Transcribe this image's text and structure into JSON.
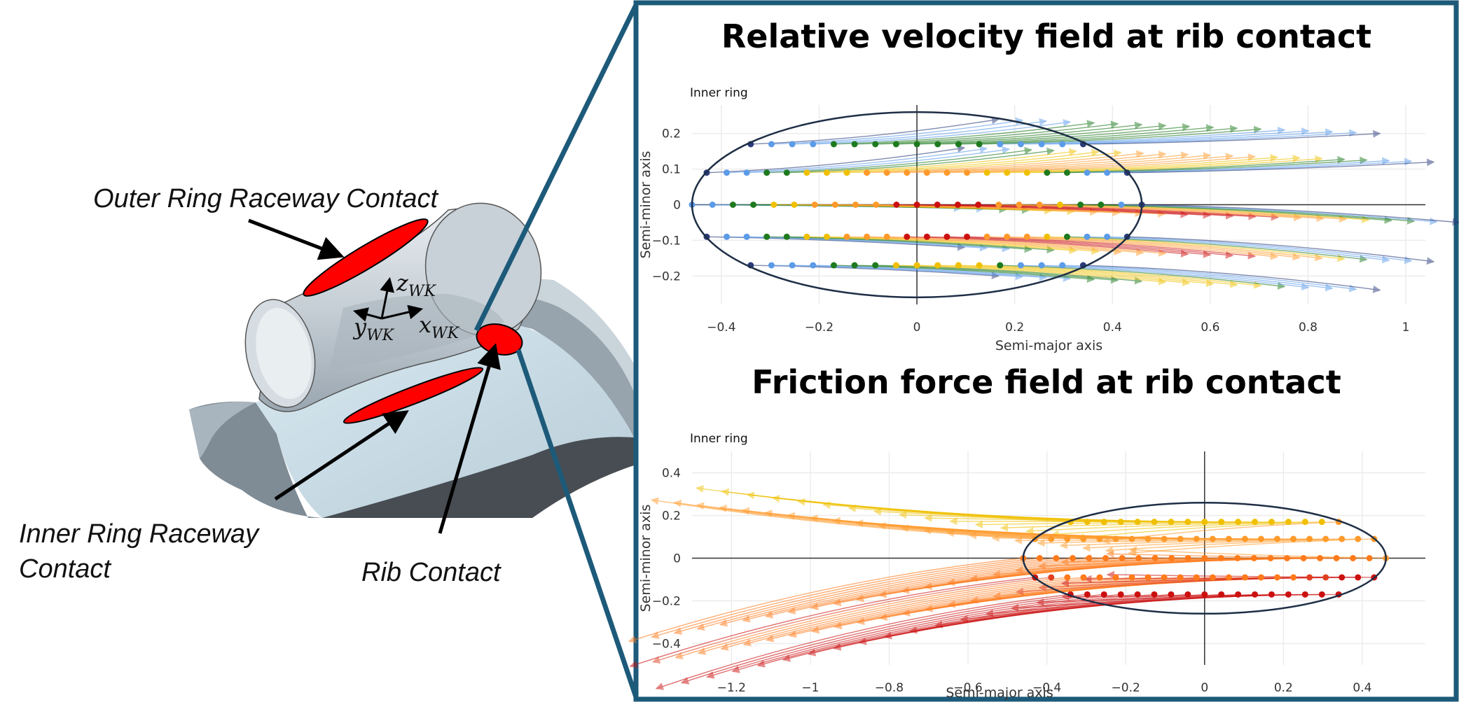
{
  "left_diagram": {
    "labels": {
      "outer_ring_raceway": "Outer Ring Raceway Contact",
      "inner_ring_raceway_line1": "Inner Ring Raceway",
      "inner_ring_raceway_line2": "Contact",
      "rib_contact": "Rib Contact"
    },
    "axes": {
      "z": "z",
      "z_sub": "WK",
      "y": "y",
      "y_sub": "WK",
      "x": "x",
      "x_sub": "WK"
    },
    "colors": {
      "contact_ellipse": "#ff0000",
      "frame": "#1d5a7a"
    }
  },
  "chart_data": [
    {
      "type": "scatter",
      "title": "Relative velocity field at rib contact",
      "annotation": "Inner ring",
      "xlabel": "Semi-major axis",
      "ylabel": "Semi-minor axis",
      "xlim": [
        -0.46,
        1.04
      ],
      "ylim": [
        -0.28,
        0.28
      ],
      "xticks": [
        "−0.4",
        "−0.2",
        "0",
        "0.2",
        "0.4",
        "0.6",
        "0.8",
        "1"
      ],
      "yticks": [
        "0.2",
        "0.1",
        "0",
        "−0.1",
        "−0.2"
      ],
      "xtick_values": [
        -0.4,
        -0.2,
        0,
        0.2,
        0.4,
        0.6,
        0.8,
        1
      ],
      "ytick_values": [
        0.2,
        0.1,
        0,
        -0.1,
        -0.2
      ],
      "contact_ellipse": {
        "a": 0.46,
        "b": 0.26
      },
      "grid": true,
      "rows": [
        {
          "y": 0.17,
          "x_start": -0.34,
          "x_end": 0.34,
          "n": 17,
          "colors": [
            "#2a3b7a",
            "#5b9be8",
            "#5b9be8",
            "#5b9be8",
            "#1e7a1e",
            "#1e7a1e",
            "#1e7a1e",
            "#1e7a1e",
            "#1e7a1e",
            "#1e7a1e",
            "#1e7a1e",
            "#1e7a1e",
            "#5b9be8",
            "#5b9be8",
            "#5b9be8",
            "#5b9be8",
            "#2a3b7a"
          ]
        },
        {
          "y": 0.09,
          "x_start": -0.43,
          "x_end": 0.43,
          "n": 22,
          "colors": [
            "#2a3b7a",
            "#5b9be8",
            "#5b9be8",
            "#1e7a1e",
            "#1e7a1e",
            "#f0c000",
            "#f0c000",
            "#f0c000",
            "#ff9a2a",
            "#ff9a2a",
            "#ff9a2a",
            "#ff9a2a",
            "#ff9a2a",
            "#ff9a2a",
            "#f0c000",
            "#f0c000",
            "#f0c000",
            "#1e7a1e",
            "#1e7a1e",
            "#5b9be8",
            "#5b9be8",
            "#2a3b7a"
          ]
        },
        {
          "y": 0.0,
          "x_start": -0.46,
          "x_end": 0.46,
          "n": 23,
          "colors": [
            "#5b9be8",
            "#5b9be8",
            "#1e7a1e",
            "#1e7a1e",
            "#f0c000",
            "#f0c000",
            "#ff9a2a",
            "#ff9a2a",
            "#ff9a2a",
            "#ff9a2a",
            "#cc1010",
            "#cc1010",
            "#cc1010",
            "#cc1010",
            "#cc1010",
            "#ff9a2a",
            "#ff9a2a",
            "#ff9a2a",
            "#f0c000",
            "#1e7a1e",
            "#1e7a1e",
            "#5b9be8",
            "#2a3b7a"
          ]
        },
        {
          "y": -0.09,
          "x_start": -0.43,
          "x_end": 0.43,
          "n": 22,
          "colors": [
            "#2a3b7a",
            "#5b9be8",
            "#5b9be8",
            "#1e7a1e",
            "#1e7a1e",
            "#f0c000",
            "#f0c000",
            "#ff9a2a",
            "#ff9a2a",
            "#ff9a2a",
            "#cc1010",
            "#cc1010",
            "#cc1010",
            "#cc1010",
            "#ff9a2a",
            "#ff9a2a",
            "#ff9a2a",
            "#f0c000",
            "#1e7a1e",
            "#5b9be8",
            "#5b9be8",
            "#2a3b7a"
          ]
        },
        {
          "y": -0.17,
          "x_start": -0.34,
          "x_end": 0.34,
          "n": 17,
          "colors": [
            "#2a3b7a",
            "#5b9be8",
            "#5b9be8",
            "#5b9be8",
            "#1e7a1e",
            "#1e7a1e",
            "#1e7a1e",
            "#f0c000",
            "#f0c000",
            "#f0c000",
            "#f0c000",
            "#f0c000",
            "#1e7a1e",
            "#5b9be8",
            "#5b9be8",
            "#5b9be8",
            "#2a3b7a"
          ]
        }
      ]
    },
    {
      "type": "scatter",
      "title": "Friction force field at rib contact",
      "annotation": "Inner ring",
      "xlabel": "Semi-major axis",
      "ylabel": "Semi-minor axis",
      "xlim": [
        -1.3,
        0.56
      ],
      "ylim": [
        -0.5,
        0.5
      ],
      "xticks": [
        "−1.2",
        "−1",
        "−0.8",
        "−0.6",
        "−0.4",
        "−0.2",
        "0",
        "0.2",
        "0.4"
      ],
      "yticks": [
        "0.4",
        "0.2",
        "0",
        "−0.2",
        "−0.4"
      ],
      "xtick_values": [
        -1.2,
        -1,
        -0.8,
        -0.6,
        -0.4,
        -0.2,
        0,
        0.2,
        0.4
      ],
      "ytick_values": [
        0.4,
        0.2,
        0,
        -0.2,
        -0.4
      ],
      "contact_ellipse": {
        "a": 0.46,
        "b": 0.26
      },
      "grid": true,
      "rows": [
        {
          "y": 0.17,
          "x_start": -0.34,
          "x_end": 0.34,
          "n": 17,
          "colors": [
            "#f0c000",
            "#f0c000",
            "#f0c000",
            "#f0c000",
            "#f0c000",
            "#f0c000",
            "#f0c000",
            "#f0c000",
            "#f0c000",
            "#f0c000",
            "#f0c000",
            "#f0c000",
            "#f0c000",
            "#f0c000",
            "#f0c000",
            "#f0c000",
            "#ff9a2a"
          ]
        },
        {
          "y": 0.09,
          "x_start": -0.43,
          "x_end": 0.43,
          "n": 22,
          "colors": [
            "#ff9a2a",
            "#ff9a2a",
            "#ff9a2a",
            "#ff9a2a",
            "#ff9a2a",
            "#ff9a2a",
            "#ff9a2a",
            "#ff9a2a",
            "#ff9a2a",
            "#ff9a2a",
            "#ff9a2a",
            "#ff9a2a",
            "#ff9a2a",
            "#ff9a2a",
            "#ff9a2a",
            "#ff9a2a",
            "#ff9a2a",
            "#ff9a2a",
            "#ff9a2a",
            "#ff9a2a",
            "#ff9a2a",
            "#ff9a2a"
          ]
        },
        {
          "y": 0.0,
          "x_start": -0.46,
          "x_end": 0.46,
          "n": 23,
          "colors": [
            "#ff7a1a",
            "#ff7a1a",
            "#ff7a1a",
            "#ff7a1a",
            "#ff7a1a",
            "#ff7a1a",
            "#ff7a1a",
            "#ff7a1a",
            "#ff7a1a",
            "#ff7a1a",
            "#ff7a1a",
            "#ff7a1a",
            "#ff7a1a",
            "#ff7a1a",
            "#ff7a1a",
            "#ff7a1a",
            "#ff7a1a",
            "#ff7a1a",
            "#ff7a1a",
            "#ff7a1a",
            "#ff7a1a",
            "#ff7a1a",
            "#ff9a2a"
          ]
        },
        {
          "y": -0.09,
          "x_start": -0.43,
          "x_end": 0.43,
          "n": 22,
          "colors": [
            "#cc1010",
            "#e04020",
            "#ff7a1a",
            "#ff7a1a",
            "#ff7a1a",
            "#ff7a1a",
            "#ff7a1a",
            "#ff7a1a",
            "#ff7a1a",
            "#ff7a1a",
            "#ff7a1a",
            "#ff7a1a",
            "#ff7a1a",
            "#ff7a1a",
            "#ff7a1a",
            "#ff7a1a",
            "#ff7a1a",
            "#e04020",
            "#e04020",
            "#cc1010",
            "#cc1010",
            "#cc1010"
          ]
        },
        {
          "y": -0.17,
          "x_start": -0.34,
          "x_end": 0.34,
          "n": 17,
          "colors": [
            "#cc1010",
            "#cc1010",
            "#cc1010",
            "#cc1010",
            "#cc1010",
            "#cc1010",
            "#cc1010",
            "#cc1010",
            "#cc1010",
            "#cc1010",
            "#cc1010",
            "#cc1010",
            "#cc1010",
            "#cc1010",
            "#cc1010",
            "#cc1010",
            "#cc1010"
          ]
        }
      ]
    }
  ]
}
